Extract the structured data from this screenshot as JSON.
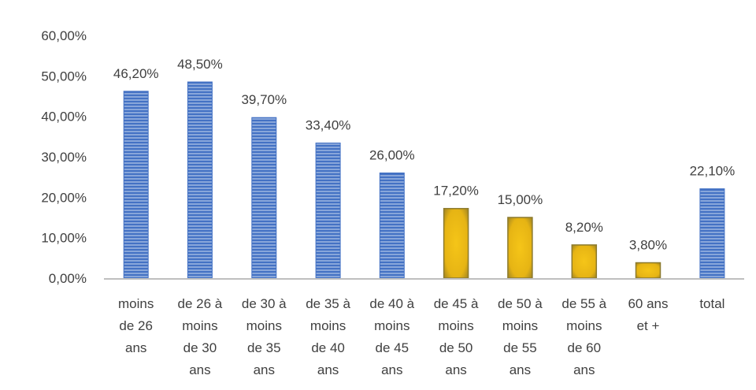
{
  "chart_data": {
    "type": "bar",
    "categories": [
      [
        "moins",
        "de 26",
        "ans"
      ],
      [
        "de 26 à",
        "moins",
        "de 30",
        "ans"
      ],
      [
        "de 30 à",
        "moins",
        "de 35",
        "ans"
      ],
      [
        "de 35 à",
        "moins",
        "de 40",
        "ans"
      ],
      [
        "de 40 à",
        "moins",
        "de 45",
        "ans"
      ],
      [
        "de 45 à",
        "moins",
        "de 50",
        "ans"
      ],
      [
        "de 50 à",
        "moins",
        "de 55",
        "ans"
      ],
      [
        "de 55 à",
        "moins",
        "de 60",
        "ans"
      ],
      [
        "60 ans",
        "et +"
      ],
      [
        "total"
      ]
    ],
    "values": [
      46.2,
      48.5,
      39.7,
      33.4,
      26.0,
      17.2,
      15.0,
      8.2,
      3.8,
      22.1
    ],
    "data_labels": [
      "46,20%",
      "48,50%",
      "39,70%",
      "33,40%",
      "26,00%",
      "17,20%",
      "15,00%",
      "8,20%",
      "3,80%",
      "22,10%"
    ],
    "bar_colors": [
      "blue",
      "blue",
      "blue",
      "blue",
      "blue",
      "gold",
      "gold",
      "gold",
      "gold",
      "blue"
    ],
    "colors": {
      "blue": "#4472C4",
      "blue_stripe": "#dbe5f7",
      "gold": "#E6B414",
      "gold_edge": "#8c7a2e",
      "axis": "#bfbfbf",
      "text": "#404040"
    },
    "ylim": [
      0,
      60
    ],
    "yticks": [
      "0,00%",
      "10,00%",
      "20,00%",
      "30,00%",
      "40,00%",
      "50,00%",
      "60,00%"
    ],
    "grid": false,
    "legend": "none",
    "title": "",
    "xlabel": "",
    "ylabel": ""
  }
}
